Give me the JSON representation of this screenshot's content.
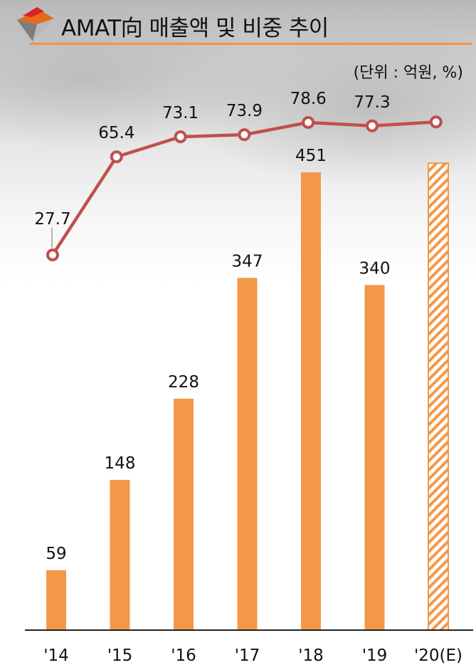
{
  "title": "AMAT向 매출액 및 비중 추이",
  "unit_label": "(단위 : 억원, %)",
  "colors": {
    "bar": "#F39847",
    "line": "#C0504D",
    "title_rule": "#F2943F",
    "axis": "#222222"
  },
  "chart_data": {
    "type": "bar",
    "categories": [
      "'14",
      "'15",
      "'16",
      "'17",
      "'18",
      "'19",
      "'20(E)"
    ],
    "series": [
      {
        "type": "bar",
        "values": [
          59,
          148,
          228,
          347,
          451,
          340,
          460
        ],
        "labels": [
          "59",
          "148",
          "228",
          "347",
          "451",
          "340",
          ""
        ],
        "estimated": [
          false,
          false,
          false,
          false,
          false,
          false,
          true
        ]
      },
      {
        "type": "line",
        "values": [
          27.7,
          65.4,
          73.1,
          73.9,
          78.6,
          77.3,
          78.8
        ],
        "labels": [
          "27.7",
          "65.4",
          "73.1",
          "73.9",
          "78.6",
          "77.3",
          ""
        ]
      }
    ],
    "ylim_bar": [
      0,
      490
    ],
    "ylim_line": [
      0,
      110
    ],
    "grid": false,
    "legend": "none"
  }
}
